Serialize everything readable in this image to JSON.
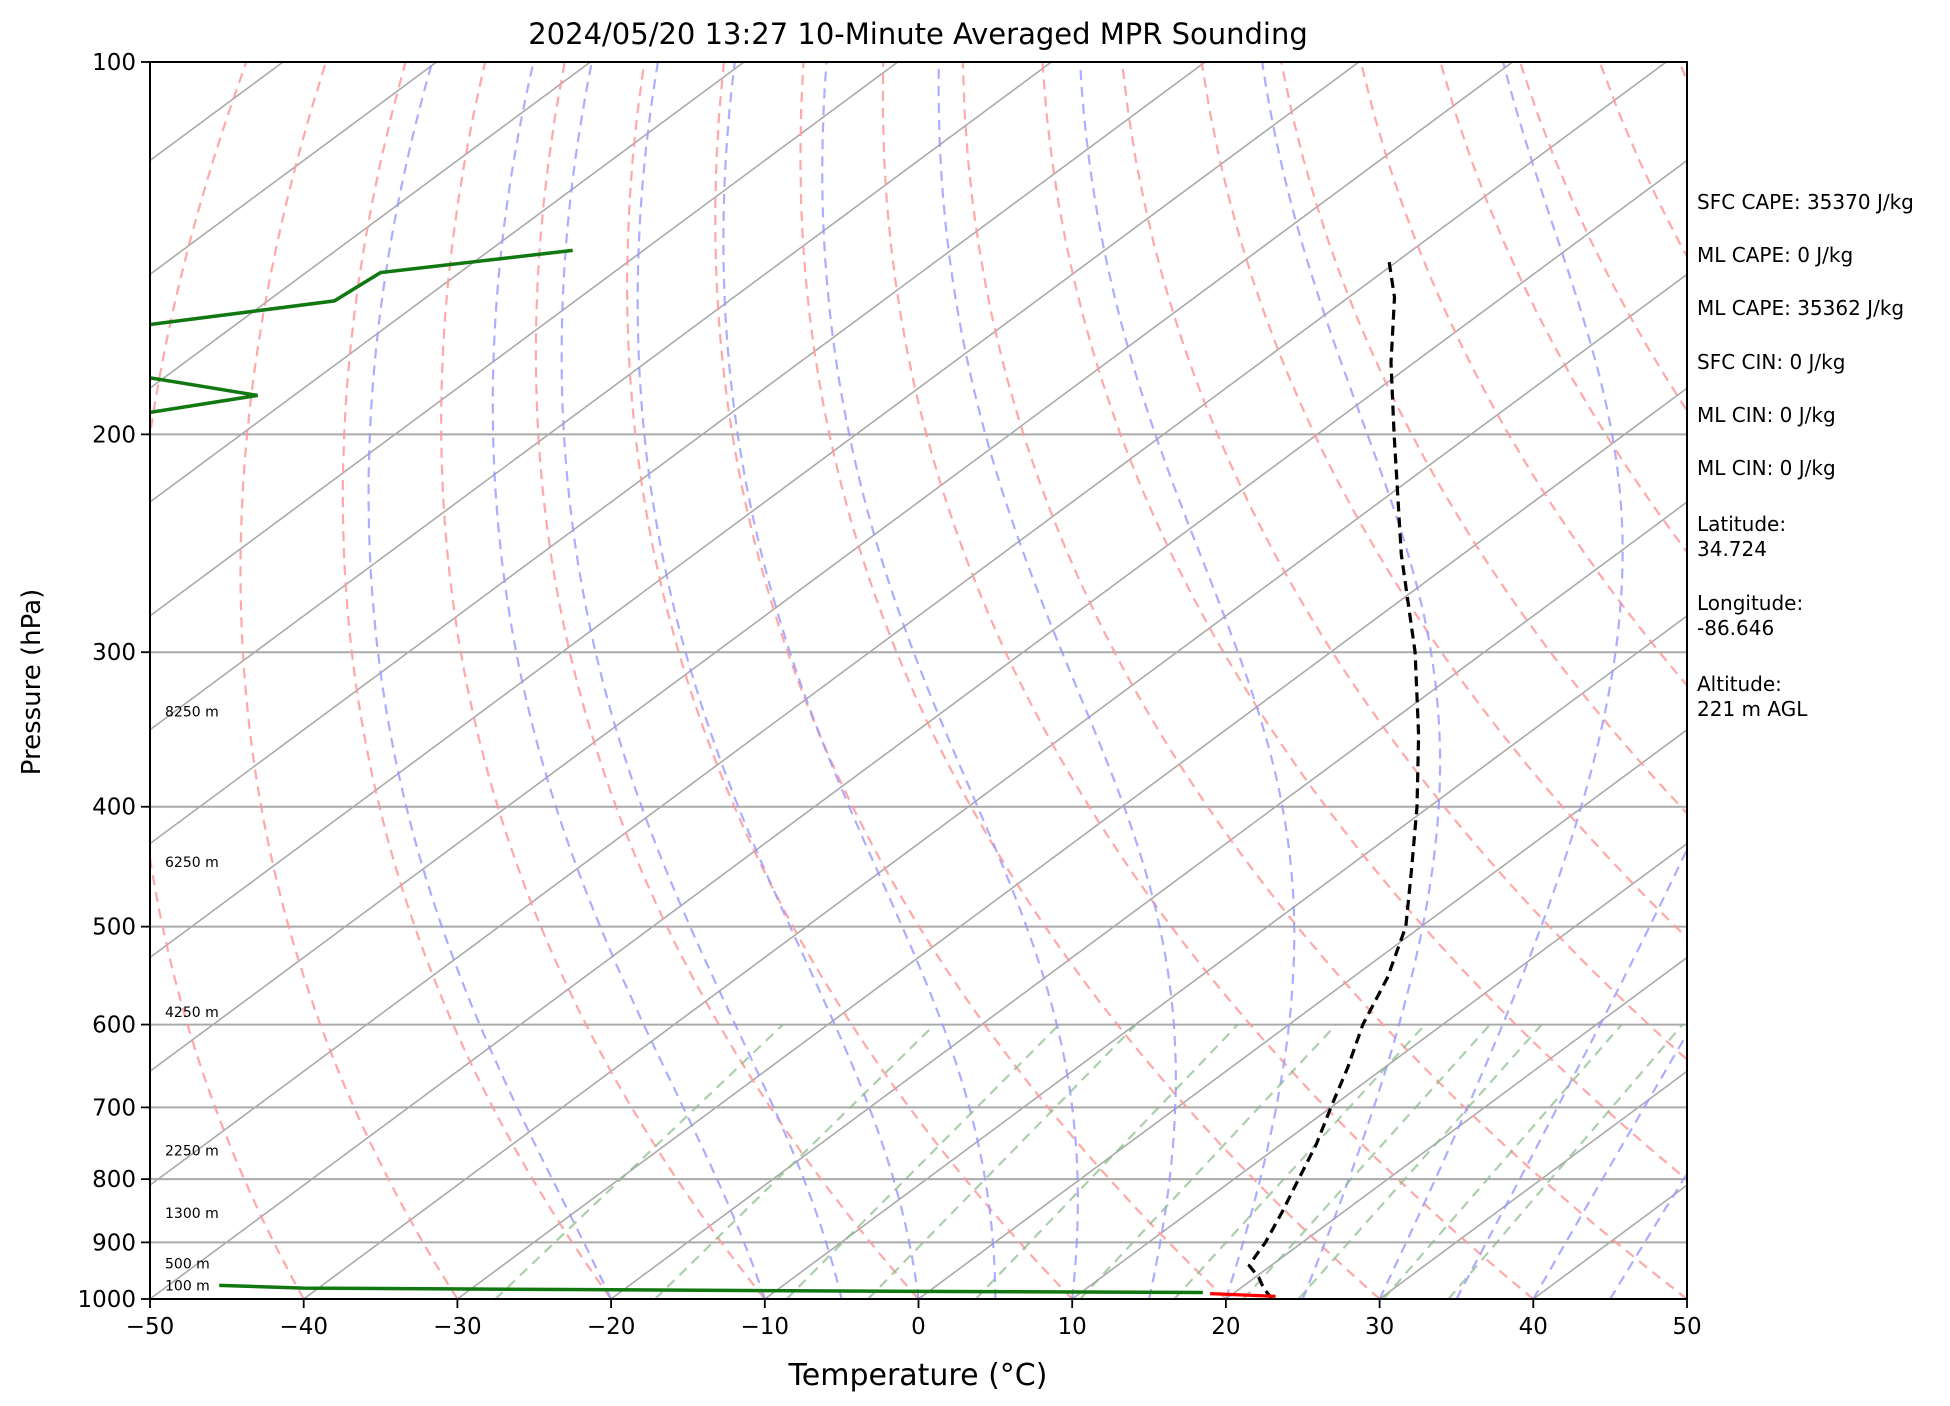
{
  "chart_data": {
    "type": "line",
    "subtype": "skew-t log-p sounding",
    "title": "2024/05/20 13:27 10-Minute Averaged MPR Sounding",
    "xlabel": "Temperature (°C)",
    "ylabel": "Pressure (hPa)",
    "xlim": [
      -50,
      50
    ],
    "ylim": [
      1000,
      100
    ],
    "y_scale": "log",
    "x_ticks": [
      -50,
      -40,
      -30,
      -20,
      -10,
      0,
      10,
      20,
      30,
      40,
      50
    ],
    "x_tick_labels": [
      "−50",
      "−40",
      "−30",
      "−20",
      "−10",
      "0",
      "10",
      "20",
      "30",
      "40",
      "50"
    ],
    "y_ticks": [
      100,
      200,
      300,
      400,
      500,
      600,
      700,
      800,
      900,
      1000
    ],
    "grid": true,
    "series": [
      {
        "color": "#000000",
        "style": "dashed",
        "points": [
          {
            "p": 1000,
            "t": 23.0
          },
          {
            "p": 980,
            "t": 21.5
          },
          {
            "p": 960,
            "t": 20.2
          },
          {
            "p": 940,
            "t": 18.6
          },
          {
            "p": 925,
            "t": 18.2
          },
          {
            "p": 900,
            "t": 17.6
          },
          {
            "p": 850,
            "t": 16.0
          },
          {
            "p": 800,
            "t": 14.2
          },
          {
            "p": 750,
            "t": 12.3
          },
          {
            "p": 700,
            "t": 10.0
          },
          {
            "p": 650,
            "t": 7.6
          },
          {
            "p": 600,
            "t": 4.8
          },
          {
            "p": 550,
            "t": 2.3
          },
          {
            "p": 500,
            "t": -1.0
          },
          {
            "p": 450,
            "t": -5.6
          },
          {
            "p": 400,
            "t": -10.8
          },
          {
            "p": 350,
            "t": -17.0
          },
          {
            "p": 300,
            "t": -24.5
          },
          {
            "p": 250,
            "t": -34.0
          },
          {
            "p": 200,
            "t": -45.0
          },
          {
            "p": 175,
            "t": -51.5
          },
          {
            "p": 155,
            "t": -57.0
          },
          {
            "p": 145,
            "t": -60.5
          }
        ]
      },
      {
        "color": "#ff0000",
        "style": "solid",
        "points": [
          {
            "p": 995,
            "t": 23.0
          },
          {
            "p": 990,
            "t": 18.5
          }
        ]
      }
    ],
    "height_labels": [
      {
        "label": "100 m",
        "p": 990
      },
      {
        "label": "500 m",
        "p": 950
      },
      {
        "label": "1300 m",
        "p": 865
      },
      {
        "label": "2250 m",
        "p": 770
      },
      {
        "label": "4250 m",
        "p": 595
      },
      {
        "label": "6250 m",
        "p": 450
      },
      {
        "label": "8250 m",
        "p": 340
      }
    ],
    "wind_profile": {
      "color": "#117711",
      "points": [
        {
          "p": 975,
          "u": -45.5
        },
        {
          "p": 980,
          "u": -40
        },
        {
          "p": 983,
          "u": -20
        },
        {
          "p": 986,
          "u": 0
        },
        {
          "p": 988,
          "u": 18.5
        },
        {
          "p": 180,
          "u": -50
        },
        {
          "p": 186,
          "u": -43
        },
        {
          "p": 192,
          "u": -50
        },
        {
          "p": 163,
          "u": -50
        },
        {
          "p": 156,
          "u": -38
        },
        {
          "p": 148,
          "u": -35
        },
        {
          "p": 142,
          "u": -22.5
        }
      ]
    },
    "background_lines": {
      "isotherms_color": "#aaaaaa",
      "dry_adiabats_color": "#ff9999",
      "moist_adiabats_color": "#9999ff",
      "mixing_ratio_color": "#88bb88"
    }
  },
  "stats": [
    "SFC CAPE: 35370 J/kg",
    "ML CAPE: 0 J/kg",
    "ML CAPE: 35362 J/kg",
    "SFC CIN: 0 J/kg",
    "ML CIN: 0 J/kg",
    "ML CIN: 0 J/kg"
  ],
  "station": {
    "latitude_label": "Latitude:",
    "latitude_value": "34.724",
    "longitude_label": "Longitude:",
    "longitude_value": "-86.646",
    "altitude_label": "Altitude:",
    "altitude_value": "221 m AGL"
  }
}
